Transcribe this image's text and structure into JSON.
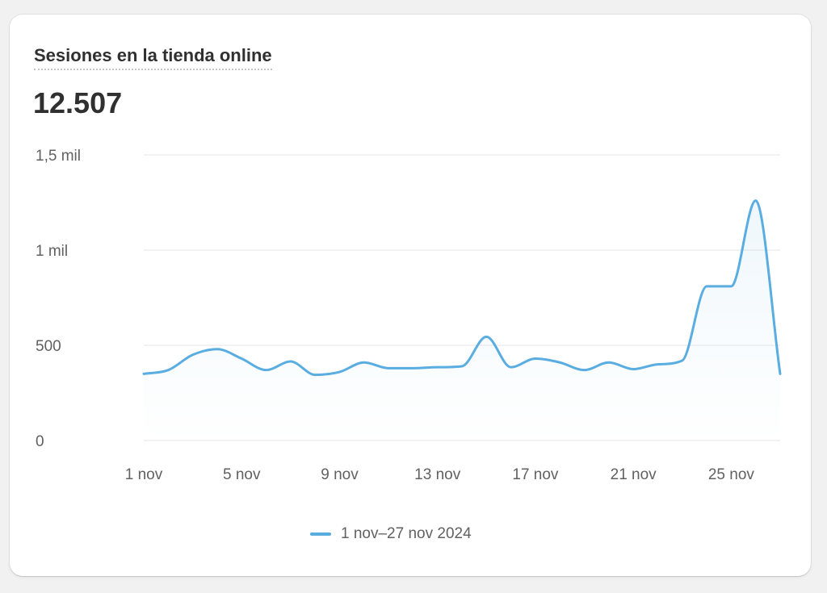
{
  "card": {
    "title": "Sesiones en la tienda online",
    "value": "12.507"
  },
  "legend": {
    "label": "1 nov–27 nov 2024"
  },
  "colors": {
    "line": "#5aade0",
    "grid": "#e6e6e6",
    "tick_text": "#616161"
  },
  "chart_data": {
    "type": "line",
    "title": "Sesiones en la tienda online",
    "xlabel": "",
    "ylabel": "",
    "x": [
      "1 nov",
      "2 nov",
      "3 nov",
      "4 nov",
      "5 nov",
      "6 nov",
      "7 nov",
      "8 nov",
      "9 nov",
      "10 nov",
      "11 nov",
      "12 nov",
      "13 nov",
      "14 nov",
      "15 nov",
      "16 nov",
      "17 nov",
      "18 nov",
      "19 nov",
      "20 nov",
      "21 nov",
      "22 nov",
      "23 nov",
      "24 nov",
      "25 nov",
      "26 nov",
      "27 nov"
    ],
    "x_ticks": [
      "1 nov",
      "5 nov",
      "9 nov",
      "13 nov",
      "17 nov",
      "21 nov",
      "25 nov"
    ],
    "y_ticks": [
      {
        "value": 0,
        "label": "0"
      },
      {
        "value": 500,
        "label": "500"
      },
      {
        "value": 1000,
        "label": "1 mil"
      },
      {
        "value": 1500,
        "label": "1,5 mil"
      }
    ],
    "ylim": [
      0,
      1500
    ],
    "grid": true,
    "legend_position": "bottom",
    "series": [
      {
        "name": "1 nov–27 nov 2024",
        "values": [
          350,
          370,
          450,
          480,
          430,
          370,
          415,
          345,
          360,
          410,
          380,
          380,
          385,
          390,
          545,
          385,
          430,
          410,
          370,
          410,
          375,
          400,
          420,
          810,
          810,
          1260,
          350
        ]
      }
    ]
  }
}
